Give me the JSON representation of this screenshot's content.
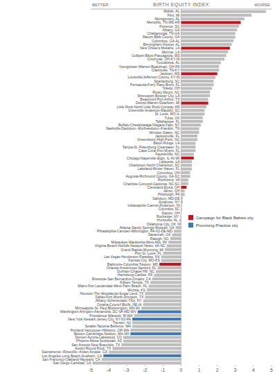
{
  "chart_data": {
    "type": "bar",
    "orientation": "horizontal",
    "title": "BIRTH EQUITY INDEX",
    "annotations": [
      "BETTER",
      "WORSE"
    ],
    "categories": [
      "Mobile, AL",
      "Flint, MI",
      "Montgomery, AL",
      "Memphis, TN-MS-AR",
      "Florence, SC",
      "Albany, GA",
      "Chattanooga, TN-GA",
      "Macon-Bibb County, GA",
      "Columbus, GA-AL",
      "Birmingham-Hoover, AL",
      "New Orleans-Metairie, LA",
      "Monroe, LA",
      "Gulfport-Biloxi-Pascagoula, MS",
      "Cincinnati, OH-KY-IN",
      "Tuscaloosa, AL",
      "Youngstown-Warren-Boardman, OH-PA",
      "Clarksville, TN-KY",
      "Jackson, MS",
      "Louisville/Jefferson County, KY-IN",
      "Spartanburg, SC",
      "Pensacola-Ferry Pass-Brent, FL",
      "Toledo, OH",
      "Rocky Mount, NC",
      "Shreveport-Bossier City, LA",
      "Beaumont-Port Arthur, TX",
      "Detroit-Warren-Dearborn, MI",
      "Little Rock-North Little Rock-Conway, AR",
      "Greenville-Anderson-Mauldin, SC",
      "St. Louis, MO-IL",
      "Tulsa, OK",
      "Tallahassee, FL",
      "Buffalo-Cheektowaga-Niagara Falls, NY",
      "Nashville-Davidson--Murfreesboro--Franklin, TN",
      "Winston-Salem, NC",
      "Jacksonville, FL",
      "Greensboro-High Point, NC",
      "Baton Rouge, LA",
      "Tampa-St. Petersburg-Clearwater, FL",
      "Cape Coral-Fort Myers, FL",
      "Fayetteville, NC",
      "Chicago-Naperville-Elgin, IL-IN-WI",
      "Lafayette, LA",
      "Charleston-North Charleston, SC",
      "Lakeland-Winter Haven, FL",
      "Columbus, OH",
      "Augusta-Richmond County, GA-SC",
      "Richmond, VA",
      "Charlotte-Concord-Gastonia, NC-SC",
      "Cleveland-Elyria, OH",
      "Akron, OH",
      "Pittsburgh, PA",
      "Salisbury, MD-DE",
      "Syracuse, NY",
      "Indianapolis-Carmel-Anderson, IN",
      "Columbia, SC",
      "Dayton, OH",
      "Rochester, NY",
      "Huntsville, AL",
      "Oklahoma City, OK",
      "Atlanta-Sandy Springs-Roswell, GA",
      "Philadelphia-Camden-Wilmington, PA-NJ-DE-MD",
      "Savannah, GA",
      "Raleigh, NC",
      "Milwaukee-Waukesha-West Allis, WI",
      "Virginia Beach-Norfolk-Newport News, VA-NC",
      "Grand Rapids-Wyoming, MI",
      "Port St. Lucie, FL",
      "Las Vegas-Henderson-Paradise, NV",
      "Kansas City, MO-KS",
      "Baltimore-Columbia-Towson, MD",
      "Orlando-Kissimmee-Sanford, FL",
      "Durham-Chapel Hill, NC",
      "Harrisburg-Carlisle, PA",
      "Riverside-San Bernardino-Ontario, CA",
      "Killeen-Temple, TX",
      "Miami-Fort Lauderdale-West Palm Beach, FL",
      "Wichita, KS",
      "Houston-The Woodlands-Sugar Land, TX",
      "Dallas-Fort Worth-Arlington, TX",
      "Albany-Schenectady-Troy, NY",
      "Omaha-Council Bluffs, NE-IA",
      "Minneapolis-St. Paul-Bloomington, MN-WI",
      "Washington-Arlington-Alexandria, DC-VA-MD-WV",
      "Providence-Warwick, RI-MA",
      "New York-Newark-Jersey City, NY-NJ-PA",
      "Trenton, NJ",
      "Seattle-Tacoma-Bellevue, WA",
      "Portland-Vancouver-Hillsboro, OR-WA",
      "Boston-Cambridge-Newton, MA-NH",
      "Denver-Aurora-Lakewood, CO",
      "Phoenix-Mesa-Scottsdale, AZ",
      "San Antonio-New Braunfels, TX",
      "Austin-Round Rock, TX",
      "Sacramento--Roseville--Arden-Arcade, CA",
      "Los Angeles-Long Beach-Anaheim, CA",
      "San Francisco-Oakland-Hayward, CA",
      "San Diego-Carlsbad, CA"
    ],
    "values": [
      4.7,
      3.9,
      3.5,
      3.3,
      3.2,
      3.1,
      3.0,
      3.0,
      2.9,
      2.8,
      2.7,
      2.6,
      2.5,
      2.4,
      2.2,
      2.1,
      2.1,
      2.0,
      1.9,
      1.8,
      1.8,
      1.7,
      1.6,
      1.6,
      1.5,
      1.5,
      1.4,
      1.3,
      1.3,
      1.2,
      1.2,
      1.1,
      1.0,
      1.0,
      0.9,
      0.9,
      0.8,
      0.8,
      0.8,
      0.7,
      0.7,
      0.6,
      0.6,
      0.6,
      0.5,
      0.5,
      0.4,
      0.4,
      0.3,
      0.2,
      0.2,
      0.1,
      0.1,
      0.05,
      0.05,
      0.02,
      -0.05,
      -0.1,
      -0.2,
      -0.3,
      -0.4,
      -0.5,
      -0.6,
      -0.7,
      -0.8,
      -0.9,
      -1.0,
      -1.1,
      -1.1,
      -1.2,
      -1.3,
      -1.4,
      -1.5,
      -1.6,
      -1.7,
      -1.8,
      -1.9,
      -2.0,
      -2.0,
      -2.1,
      -2.1,
      -2.2,
      -2.4,
      -2.6,
      -2.7,
      -2.7,
      -2.7,
      -2.8,
      -2.8,
      -3.2,
      -3.2,
      -3.3,
      -3.8,
      -4.0,
      -4.3,
      -4.4,
      -4.9
    ],
    "colors": [
      "#bdbdbd",
      "#bdbdbd",
      "#bdbdbd",
      "#c0141c",
      "#bdbdbd",
      "#bdbdbd",
      "#bdbdbd",
      "#bdbdbd",
      "#bdbdbd",
      "#bdbdbd",
      "#c0141c",
      "#bdbdbd",
      "#bdbdbd",
      "#bdbdbd",
      "#bdbdbd",
      "#bdbdbd",
      "#bdbdbd",
      "#c0141c",
      "#bdbdbd",
      "#bdbdbd",
      "#bdbdbd",
      "#bdbdbd",
      "#bdbdbd",
      "#bdbdbd",
      "#bdbdbd",
      "#c0141c",
      "#bdbdbd",
      "#bdbdbd",
      "#bdbdbd",
      "#bdbdbd",
      "#bdbdbd",
      "#bdbdbd",
      "#bdbdbd",
      "#bdbdbd",
      "#bdbdbd",
      "#bdbdbd",
      "#bdbdbd",
      "#bdbdbd",
      "#bdbdbd",
      "#bdbdbd",
      "#c0141c",
      "#bdbdbd",
      "#bdbdbd",
      "#bdbdbd",
      "#bdbdbd",
      "#bdbdbd",
      "#bdbdbd",
      "#bdbdbd",
      "#c0141c",
      "#bdbdbd",
      "#bdbdbd",
      "#bdbdbd",
      "#bdbdbd",
      "#bdbdbd",
      "#bdbdbd",
      "#bdbdbd",
      "#bdbdbd",
      "#bdbdbd",
      "#bdbdbd",
      "#bdbdbd",
      "#bdbdbd",
      "#bdbdbd",
      "#bdbdbd",
      "#bdbdbd",
      "#bdbdbd",
      "#bdbdbd",
      "#bdbdbd",
      "#bdbdbd",
      "#bdbdbd",
      "#c0141c",
      "#bdbdbd",
      "#bdbdbd",
      "#bdbdbd",
      "#bdbdbd",
      "#bdbdbd",
      "#bdbdbd",
      "#bdbdbd",
      "#bdbdbd",
      "#bdbdbd",
      "#bdbdbd",
      "#bdbdbd",
      "#bdbdbd",
      "#3a78b8",
      "#bdbdbd",
      "#3a78b8",
      "#bdbdbd",
      "#bdbdbd",
      "#bdbdbd",
      "#3a78b8",
      "#bdbdbd",
      "#bdbdbd",
      "#bdbdbd",
      "#bdbdbd",
      "#bdbdbd",
      "#3a78b8",
      "#bdbdbd",
      "#bdbdbd"
    ],
    "legend_entries": [
      {
        "label": "Campaign for Black Babies city",
        "color": "#c0141c"
      },
      {
        "label": "Promising Practice city",
        "color": "#3a78b8"
      }
    ],
    "xlim": [
      -5,
      5
    ],
    "xticks": [
      -5,
      -4,
      -3,
      -2,
      -1,
      0,
      1,
      2,
      3,
      4,
      5
    ],
    "grid": false
  }
}
